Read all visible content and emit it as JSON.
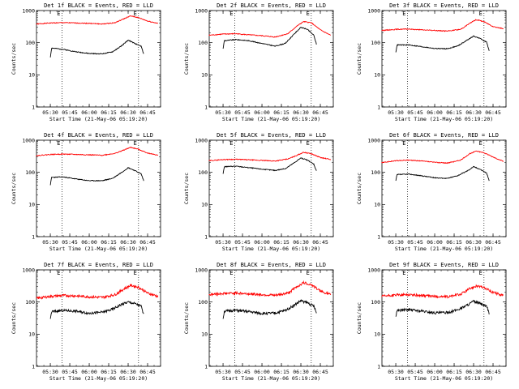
{
  "chart_data": [
    {
      "type": "line",
      "title": "Det 1f BLACK = Events, RED = LLD",
      "xlabel": "Start Time (21-May-06 05:19:20)",
      "ylabel": "Counts/sec",
      "yscale": "log",
      "ylim": [
        1,
        1000
      ],
      "yticks": [
        "1",
        "10",
        "100",
        "1000"
      ],
      "xticks": [
        "05:30",
        "05:45",
        "06:00",
        "06:15",
        "06:30",
        "06:45"
      ],
      "xlim": [
        "05:19:20",
        "06:55:00"
      ],
      "markers": [
        "05:39",
        "06:38"
      ],
      "marker_labels": [
        "E",
        "E"
      ],
      "series": [
        {
          "name": "RED",
          "color": "#ff0000",
          "x": [
            "05:19",
            "05:30",
            "05:40",
            "05:50",
            "06:00",
            "06:10",
            "06:20",
            "06:27",
            "06:32",
            "06:38",
            "06:45",
            "06:53"
          ],
          "y": [
            380,
            410,
            420,
            410,
            400,
            380,
            420,
            560,
            680,
            600,
            470,
            400
          ]
        },
        {
          "name": "BLACK",
          "color": "#000000",
          "x": [
            "05:30",
            "05:31",
            "05:40",
            "05:50",
            "06:00",
            "06:10",
            "06:18",
            "06:25",
            "06:30",
            "06:35",
            "06:40",
            "06:42"
          ],
          "y": [
            35,
            68,
            62,
            52,
            46,
            45,
            52,
            80,
            120,
            95,
            78,
            45
          ]
        }
      ]
    },
    {
      "type": "line",
      "title": "Det 2f BLACK = Events, RED = LLD",
      "xlabel": "Start Time (21-May-06 05:19:20)",
      "ylabel": "Counts/sec",
      "yscale": "log",
      "ylim": [
        1,
        1000
      ],
      "yticks": [
        "1",
        "10",
        "100",
        "1000"
      ],
      "xticks": [
        "05:30",
        "05:45",
        "06:00",
        "06:15",
        "06:30",
        "06:45"
      ],
      "xlim": [
        "05:19:20",
        "06:55:00"
      ],
      "markers": [
        "05:39",
        "06:38"
      ],
      "marker_labels": [
        "E",
        "E"
      ],
      "series": [
        {
          "name": "RED",
          "color": "#ff0000",
          "x": [
            "05:19",
            "05:30",
            "05:40",
            "05:50",
            "06:00",
            "06:10",
            "06:20",
            "06:27",
            "06:32",
            "06:38",
            "06:45",
            "06:53"
          ],
          "y": [
            170,
            185,
            190,
            175,
            165,
            150,
            190,
            330,
            450,
            420,
            250,
            170
          ]
        },
        {
          "name": "BLACK",
          "color": "#000000",
          "x": [
            "05:30",
            "05:31",
            "05:40",
            "05:50",
            "06:00",
            "06:10",
            "06:18",
            "06:25",
            "06:30",
            "06:35",
            "06:40",
            "06:42"
          ],
          "y": [
            65,
            115,
            125,
            115,
            95,
            78,
            95,
            190,
            300,
            260,
            170,
            90
          ]
        }
      ]
    },
    {
      "type": "line",
      "title": "Det 3f BLACK = Events, RED = LLD",
      "xlabel": "Start Time (21-May-06 05:19:20)",
      "ylabel": "Counts/sec",
      "yscale": "log",
      "ylim": [
        1,
        1000
      ],
      "yticks": [
        "1",
        "10",
        "100",
        "1000"
      ],
      "xticks": [
        "05:30",
        "05:45",
        "06:00",
        "06:15",
        "06:30",
        "06:45"
      ],
      "xlim": [
        "05:19:20",
        "06:55:00"
      ],
      "markers": [
        "05:39",
        "06:38"
      ],
      "marker_labels": [
        "E",
        "E"
      ],
      "series": [
        {
          "name": "RED",
          "color": "#ff0000",
          "x": [
            "05:19",
            "05:30",
            "05:40",
            "05:50",
            "06:00",
            "06:10",
            "06:20",
            "06:27",
            "06:32",
            "06:38",
            "06:45",
            "06:53"
          ],
          "y": [
            240,
            260,
            265,
            250,
            240,
            230,
            260,
            400,
            520,
            450,
            320,
            270
          ]
        },
        {
          "name": "BLACK",
          "color": "#000000",
          "x": [
            "05:30",
            "05:31",
            "05:40",
            "05:50",
            "06:00",
            "06:10",
            "06:18",
            "06:25",
            "06:30",
            "06:35",
            "06:40",
            "06:42"
          ],
          "y": [
            50,
            85,
            85,
            75,
            66,
            65,
            80,
            120,
            160,
            135,
            105,
            55
          ]
        }
      ]
    },
    {
      "type": "line",
      "title": "Det 4f BLACK = Events, RED = LLD",
      "xlabel": "Start Time (21-May-06 05:19:20)",
      "ylabel": "Counts/sec",
      "yscale": "log",
      "ylim": [
        1,
        1000
      ],
      "yticks": [
        "1",
        "10",
        "100",
        "1000"
      ],
      "xticks": [
        "05:30",
        "05:45",
        "06:00",
        "06:15",
        "06:30",
        "06:45"
      ],
      "xlim": [
        "05:19:20",
        "06:55:00"
      ],
      "markers": [
        "05:39",
        "06:38"
      ],
      "marker_labels": [
        "E",
        "E"
      ],
      "series": [
        {
          "name": "RED",
          "color": "#ff0000",
          "x": [
            "05:19",
            "05:30",
            "05:40",
            "05:50",
            "06:00",
            "06:10",
            "06:20",
            "06:27",
            "06:32",
            "06:38",
            "06:45",
            "06:53"
          ],
          "y": [
            330,
            360,
            370,
            360,
            350,
            340,
            390,
            500,
            600,
            520,
            400,
            340
          ]
        },
        {
          "name": "BLACK",
          "color": "#000000",
          "x": [
            "05:30",
            "05:31",
            "05:40",
            "05:50",
            "06:00",
            "06:10",
            "06:18",
            "06:25",
            "06:30",
            "06:35",
            "06:40",
            "06:42"
          ],
          "y": [
            40,
            70,
            72,
            62,
            55,
            55,
            65,
            100,
            140,
            115,
            90,
            55
          ]
        }
      ]
    },
    {
      "type": "line",
      "title": "Det 5f BLACK = Events, RED = LLD",
      "xlabel": "Start Time (21-May-06 05:19:20)",
      "ylabel": "Counts/sec",
      "yscale": "log",
      "ylim": [
        1,
        1000
      ],
      "yticks": [
        "1",
        "10",
        "100",
        "1000"
      ],
      "xticks": [
        "05:30",
        "05:45",
        "06:00",
        "06:15",
        "06:30",
        "06:45"
      ],
      "xlim": [
        "05:19:20",
        "06:55:00"
      ],
      "markers": [
        "05:39",
        "06:38"
      ],
      "marker_labels": [
        "E",
        "E"
      ],
      "series": [
        {
          "name": "RED",
          "color": "#ff0000",
          "x": [
            "05:19",
            "05:30",
            "05:40",
            "05:50",
            "06:00",
            "06:10",
            "06:20",
            "06:27",
            "06:32",
            "06:38",
            "06:45",
            "06:53"
          ],
          "y": [
            230,
            250,
            255,
            245,
            235,
            225,
            260,
            340,
            420,
            380,
            290,
            250
          ]
        },
        {
          "name": "BLACK",
          "color": "#000000",
          "x": [
            "05:30",
            "05:31",
            "05:40",
            "05:50",
            "06:00",
            "06:10",
            "06:18",
            "06:25",
            "06:30",
            "06:35",
            "06:40",
            "06:42"
          ],
          "y": [
            90,
            150,
            155,
            140,
            125,
            115,
            130,
            200,
            280,
            240,
            180,
            110
          ]
        }
      ]
    },
    {
      "type": "line",
      "title": "Det 6f BLACK = Events, RED = LLD",
      "xlabel": "Start Time (21-May-06 05:19:20)",
      "ylabel": "Counts/sec",
      "yscale": "log",
      "ylim": [
        1,
        1000
      ],
      "yticks": [
        "1",
        "10",
        "100",
        "1000"
      ],
      "xticks": [
        "05:30",
        "05:45",
        "06:00",
        "06:15",
        "06:30",
        "06:45"
      ],
      "xlim": [
        "05:19:20",
        "06:55:00"
      ],
      "markers": [
        "05:39",
        "06:38"
      ],
      "marker_labels": [
        "E",
        "E"
      ],
      "series": [
        {
          "name": "RED",
          "color": "#ff0000",
          "x": [
            "05:19",
            "05:30",
            "05:40",
            "05:50",
            "06:00",
            "06:10",
            "06:20",
            "06:27",
            "06:32",
            "06:38",
            "06:45",
            "06:53"
          ],
          "y": [
            200,
            230,
            240,
            225,
            205,
            195,
            240,
            380,
            460,
            410,
            300,
            220
          ]
        },
        {
          "name": "BLACK",
          "color": "#000000",
          "x": [
            "05:30",
            "05:31",
            "05:40",
            "05:50",
            "06:00",
            "06:10",
            "06:18",
            "06:25",
            "06:30",
            "06:35",
            "06:40",
            "06:42"
          ],
          "y": [
            55,
            85,
            88,
            78,
            68,
            65,
            80,
            110,
            150,
            125,
            95,
            55
          ]
        }
      ]
    },
    {
      "type": "line",
      "title": "Det 7f BLACK = Events, RED = LLD",
      "xlabel": "Start Time (21-May-06 05:19:20)",
      "ylabel": "Counts/sec",
      "yscale": "log",
      "ylim": [
        1,
        1000
      ],
      "yticks": [
        "1",
        "10",
        "100",
        "1000"
      ],
      "xticks": [
        "05:30",
        "05:45",
        "06:00",
        "06:15",
        "06:30",
        "06:45"
      ],
      "xlim": [
        "05:19:20",
        "06:55:00"
      ],
      "markers": [
        "05:39",
        "06:38"
      ],
      "marker_labels": [
        "E",
        "E"
      ],
      "series": [
        {
          "name": "RED",
          "color": "#ff0000",
          "x": [
            "05:19",
            "05:30",
            "05:40",
            "05:50",
            "06:00",
            "06:10",
            "06:20",
            "06:27",
            "06:32",
            "06:38",
            "06:45",
            "06:53"
          ],
          "y": [
            130,
            150,
            160,
            155,
            145,
            140,
            170,
            260,
            330,
            290,
            190,
            150
          ]
        },
        {
          "name": "BLACK",
          "color": "#000000",
          "x": [
            "05:30",
            "05:31",
            "05:40",
            "05:50",
            "06:00",
            "06:10",
            "06:18",
            "06:25",
            "06:30",
            "06:35",
            "06:40",
            "06:42"
          ],
          "y": [
            30,
            50,
            55,
            52,
            45,
            48,
            60,
            85,
            100,
            90,
            75,
            40
          ]
        }
      ]
    },
    {
      "type": "line",
      "title": "Det 8f BLACK = Events, RED = LLD",
      "xlabel": "Start Time (21-May-06 05:19:20)",
      "ylabel": "Counts/sec",
      "yscale": "log",
      "ylim": [
        1,
        1000
      ],
      "yticks": [
        "1",
        "10",
        "100",
        "1000"
      ],
      "xticks": [
        "05:30",
        "05:45",
        "06:00",
        "06:15",
        "06:30",
        "06:45"
      ],
      "xlim": [
        "05:19:20",
        "06:55:00"
      ],
      "markers": [
        "05:39",
        "06:38"
      ],
      "marker_labels": [
        "E",
        "E"
      ],
      "series": [
        {
          "name": "RED",
          "color": "#ff0000",
          "x": [
            "05:19",
            "05:30",
            "05:40",
            "05:50",
            "06:00",
            "06:10",
            "06:20",
            "06:27",
            "06:32",
            "06:38",
            "06:45",
            "06:53"
          ],
          "y": [
            170,
            185,
            190,
            180,
            170,
            160,
            190,
            300,
            400,
            350,
            220,
            170
          ]
        },
        {
          "name": "BLACK",
          "color": "#000000",
          "x": [
            "05:30",
            "05:31",
            "05:40",
            "05:50",
            "06:00",
            "06:10",
            "06:18",
            "06:25",
            "06:30",
            "06:35",
            "06:40",
            "06:42"
          ],
          "y": [
            30,
            52,
            55,
            50,
            44,
            45,
            55,
            80,
            110,
            95,
            75,
            45
          ]
        }
      ]
    },
    {
      "type": "line",
      "title": "Det 9f BLACK = Events, RED = LLD",
      "xlabel": "Start Time (21-May-06 05:19:20)",
      "ylabel": "Counts/sec",
      "yscale": "log",
      "ylim": [
        1,
        1000
      ],
      "yticks": [
        "1",
        "10",
        "100",
        "1000"
      ],
      "xticks": [
        "05:30",
        "05:45",
        "06:00",
        "06:15",
        "06:30",
        "06:45"
      ],
      "xlim": [
        "05:19:20",
        "06:55:00"
      ],
      "markers": [
        "05:39",
        "06:38"
      ],
      "marker_labels": [
        "E",
        "E"
      ],
      "series": [
        {
          "name": "RED",
          "color": "#ff0000",
          "x": [
            "05:19",
            "05:30",
            "05:40",
            "05:50",
            "06:00",
            "06:10",
            "06:20",
            "06:27",
            "06:32",
            "06:38",
            "06:45",
            "06:53"
          ],
          "y": [
            150,
            165,
            170,
            160,
            150,
            145,
            175,
            260,
            320,
            280,
            200,
            160
          ]
        },
        {
          "name": "BLACK",
          "color": "#000000",
          "x": [
            "05:30",
            "05:31",
            "05:40",
            "05:50",
            "06:00",
            "06:10",
            "06:18",
            "06:25",
            "06:30",
            "06:35",
            "06:40",
            "06:42"
          ],
          "y": [
            35,
            55,
            58,
            52,
            46,
            47,
            58,
            80,
            105,
            90,
            72,
            45
          ]
        }
      ]
    }
  ]
}
